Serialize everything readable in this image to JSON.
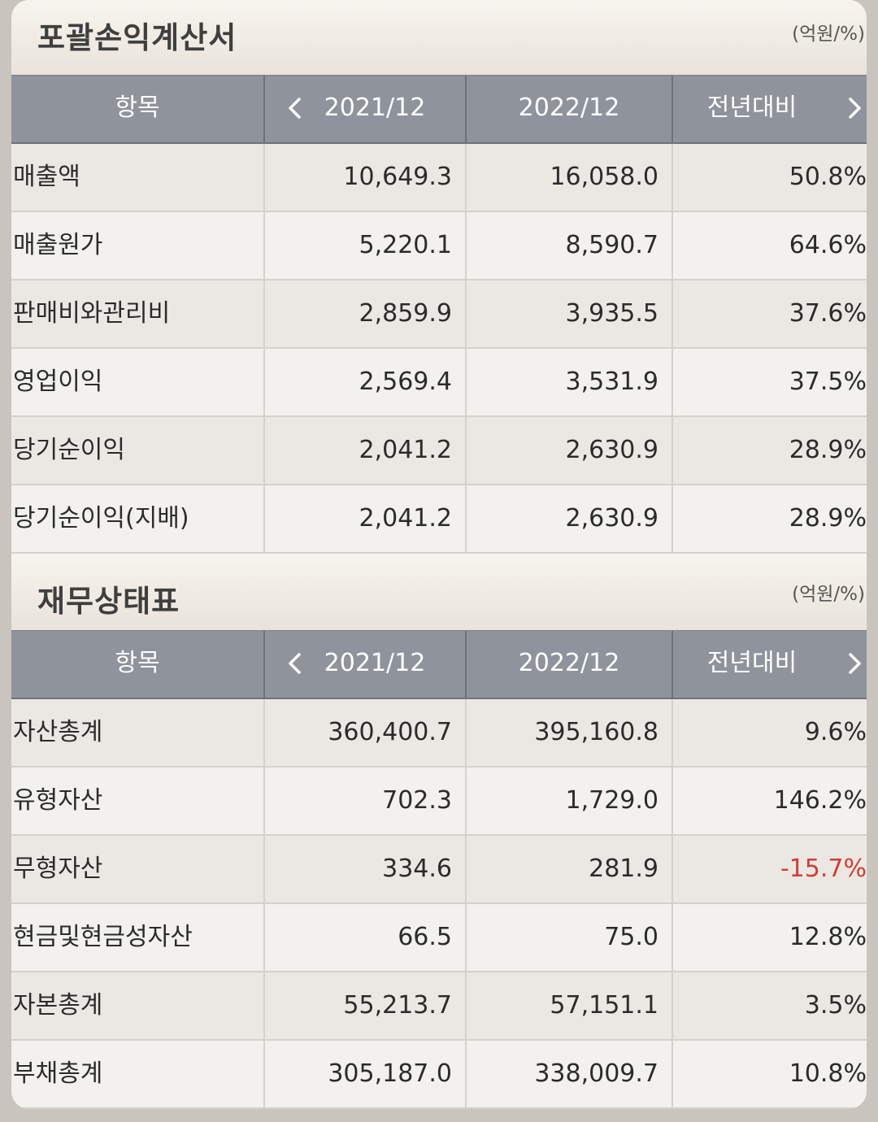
{
  "income_statement": {
    "title": "포괄손익계산서",
    "unit": "(억원/%)",
    "headers": [
      "항목",
      "2021/12",
      "2022/12",
      "전년대비"
    ],
    "rows": [
      {
        "item": "매출액",
        "y2021": "10,649.3",
        "y2022": "16,058.0",
        "yoy": "50.8%"
      },
      {
        "item": "매출원가",
        "y2021": "5,220.1",
        "y2022": "8,590.7",
        "yoy": "64.6%"
      },
      {
        "item": "판매비와관리비",
        "y2021": "2,859.9",
        "y2022": "3,935.5",
        "yoy": "37.6%"
      },
      {
        "item": "영업이익",
        "y2021": "2,569.4",
        "y2022": "3,531.9",
        "yoy": "37.5%"
      },
      {
        "item": "당기순이익",
        "y2021": "2,041.2",
        "y2022": "2,630.9",
        "yoy": "28.9%"
      },
      {
        "item": "당기순이익(지배)",
        "y2021": "2,041.2",
        "y2022": "2,630.9",
        "yoy": "28.9%"
      }
    ]
  },
  "balance_sheet": {
    "title": "재무상태표",
    "unit": "(억원/%)",
    "headers": [
      "항목",
      "2021/12",
      "2022/12",
      "전년대비"
    ],
    "rows": [
      {
        "item": "자산총계",
        "y2021": "360,400.7",
        "y2022": "395,160.8",
        "yoy": "9.6%"
      },
      {
        "item": "유형자산",
        "y2021": "702.3",
        "y2022": "1,729.0",
        "yoy": "146.2%"
      },
      {
        "item": "무형자산",
        "y2021": "334.6",
        "y2022": "281.9",
        "yoy": "-15.7%"
      },
      {
        "item": "현금및현금성자산",
        "y2021": "66.5",
        "y2022": "75.0",
        "yoy": "12.8%"
      },
      {
        "item": "자본총계",
        "y2021": "55,213.7",
        "y2022": "57,151.1",
        "yoy": "3.5%"
      },
      {
        "item": "부채총계",
        "y2021": "305,187.0",
        "y2022": "338,009.7",
        "yoy": "10.8%"
      }
    ]
  },
  "colors": {
    "header_bg": "#8f939b",
    "negative": "#d13d33",
    "row_odd": "#ebe8e4",
    "row_even": "#f2f1ee"
  },
  "icons": {
    "prev": "chevron-left-icon",
    "next": "chevron-right-icon"
  }
}
